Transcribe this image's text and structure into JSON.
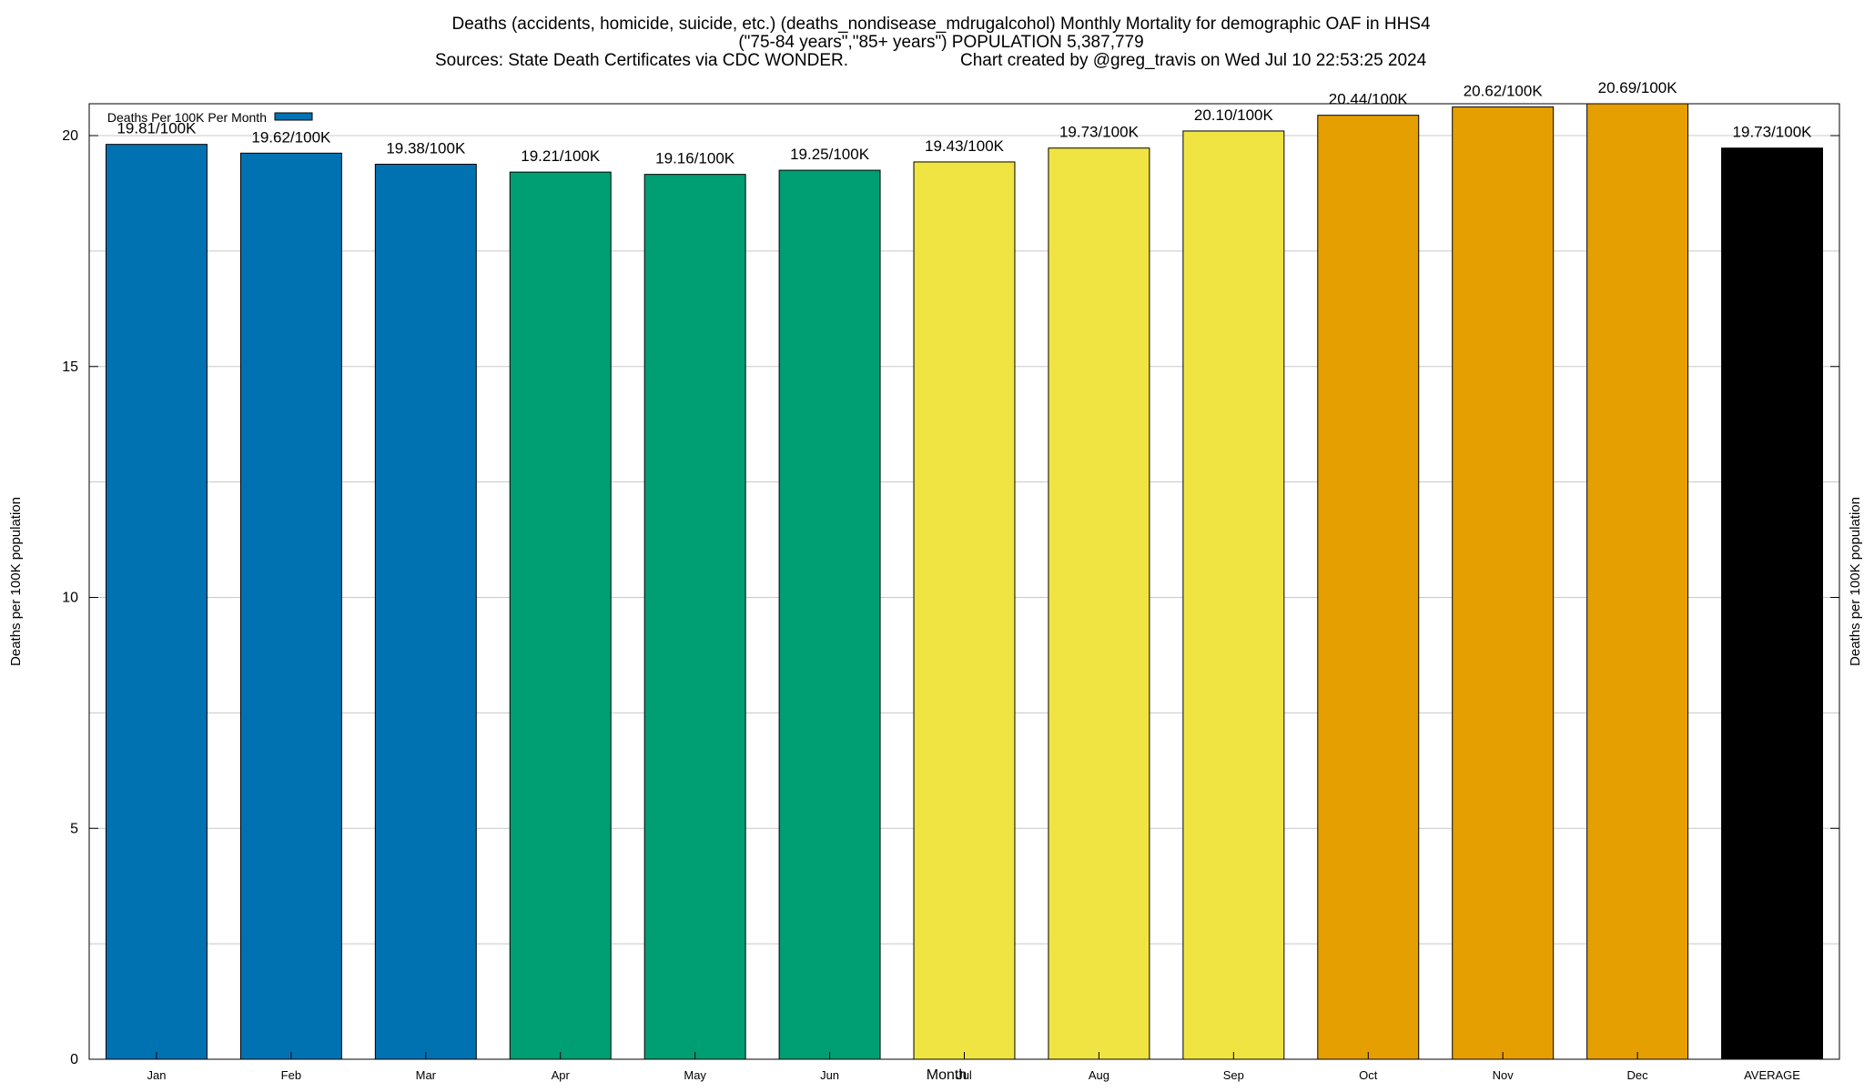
{
  "chart_data": {
    "type": "bar",
    "title": "Deaths (accidents, homicide, suicide, etc.) (deaths_nondisease_mdrugalcohol) Monthly Mortality for demographic OAF in HHS4",
    "subtitle": "(\"75-84 years\",\"85+ years\") POPULATION 5,387,779",
    "source_line": "Sources: State Death Certificates via CDC WONDER.",
    "credit_line": "Chart created by @greg_travis on Wed Jul 10 22:53:25 2024",
    "xlabel": "Month",
    "ylabel_left": "Deaths per 100K population",
    "ylabel_right": "Deaths per 100K population",
    "legend": {
      "label": "Deaths Per 100K Per Month",
      "position": "top-left",
      "color": "#0072b2"
    },
    "ylim": [
      0,
      20.69
    ],
    "yticks": [
      0,
      5,
      10,
      15,
      20
    ],
    "ytick_labels": [
      "0",
      "5",
      "10",
      "15",
      "20"
    ],
    "grid": true,
    "categories": [
      "Jan",
      "Feb",
      "Mar",
      "Apr",
      "May",
      "Jun",
      "Jul",
      "Aug",
      "Sep",
      "Oct",
      "Nov",
      "Dec",
      "AVERAGE"
    ],
    "values": [
      19.81,
      19.62,
      19.38,
      19.21,
      19.16,
      19.25,
      19.43,
      19.73,
      20.1,
      20.44,
      20.62,
      20.69,
      19.73
    ],
    "data_labels": [
      "19.81/100K",
      "19.62/100K",
      "19.38/100K",
      "19.21/100K",
      "19.16/100K",
      "19.25/100K",
      "19.43/100K",
      "19.73/100K",
      "20.10/100K",
      "20.44/100K",
      "20.62/100K",
      "20.69/100K",
      "19.73/100K"
    ],
    "colors": [
      "#0072b2",
      "#0072b2",
      "#0072b2",
      "#009e73",
      "#009e73",
      "#009e73",
      "#f0e442",
      "#f0e442",
      "#f0e442",
      "#e69f00",
      "#e69f00",
      "#e69f00",
      "#000000"
    ]
  }
}
